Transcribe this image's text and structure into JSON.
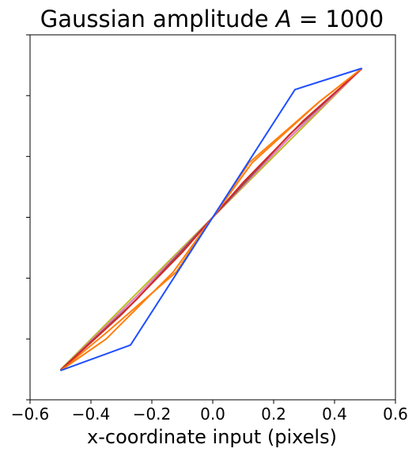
{
  "chart_data": {
    "type": "line",
    "title_prefix": "Gaussian amplitude ",
    "title_var": "A",
    "title_suffix": " = 1000",
    "xlabel": "x-coordinate input (pixels)",
    "ylabel": "",
    "xlim": [
      -0.6,
      0.6
    ],
    "ylim": [
      -0.6,
      0.6
    ],
    "x_ticks": [
      -0.6,
      -0.4,
      -0.2,
      0.0,
      0.2,
      0.4,
      0.6
    ],
    "x_tick_labels": [
      "−0.6",
      "−0.4",
      "−0.2",
      "0.0",
      "0.2",
      "0.4",
      "0.6"
    ],
    "y_ticks": [
      -0.6,
      -0.4,
      -0.2,
      0.0,
      0.2,
      0.4,
      0.6
    ],
    "y_tick_labels_visible": false,
    "grid": false,
    "legend": "none",
    "series": [
      {
        "color": "#ff7f0e",
        "x": [
          -0.5,
          -0.35,
          -0.12,
          0.0,
          0.12,
          0.35,
          0.49
        ],
        "y": [
          -0.504,
          -0.38,
          -0.18,
          0.0,
          0.18,
          0.38,
          0.489
        ]
      },
      {
        "color": "#bcbd22",
        "x": [
          -0.5,
          -0.25,
          0.0,
          0.25,
          0.49
        ],
        "y": [
          -0.501,
          -0.25,
          0.0,
          0.25,
          0.49
        ]
      },
      {
        "color": "#e377c2",
        "x": [
          -0.5,
          -0.25,
          0.0,
          0.25,
          0.49
        ],
        "y": [
          -0.503,
          -0.26,
          0.0,
          0.26,
          0.489
        ]
      },
      {
        "color": "#8c564b",
        "x": [
          -0.5,
          -0.25,
          0.0,
          0.25,
          0.49
        ],
        "y": [
          -0.502,
          -0.27,
          0.0,
          0.27,
          0.49
        ]
      },
      {
        "color": "#d62728",
        "x": [
          -0.5,
          -0.3,
          -0.1,
          0.0,
          0.1,
          0.3,
          0.49
        ],
        "y": [
          -0.503,
          -0.32,
          -0.115,
          0.0,
          0.115,
          0.32,
          0.489
        ]
      },
      {
        "color": "#ff7f0e",
        "x": [
          -0.5,
          -0.35,
          -0.13,
          0.0,
          0.13,
          0.35,
          0.49
        ],
        "y": [
          -0.504,
          -0.4,
          -0.18,
          0.0,
          0.18,
          0.38,
          0.49
        ]
      },
      {
        "color": "#1f4fff",
        "x": [
          -0.5,
          -0.27,
          0.0,
          0.27,
          0.49
        ],
        "y": [
          -0.504,
          -0.42,
          0.0,
          0.42,
          0.49
        ]
      }
    ]
  }
}
